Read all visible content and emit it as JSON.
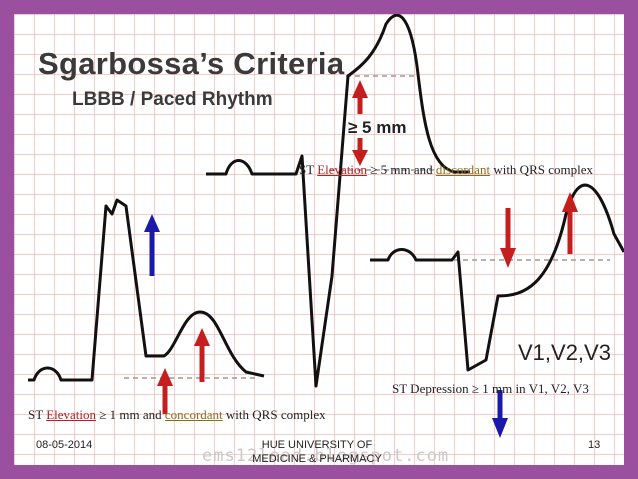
{
  "slide": {
    "title": "Sgarbossa’s Criteria",
    "subtitle": "LBBB / Paced Rhythm",
    "ge5_label": "≥ 5 mm",
    "leads_label": "V1,V2,V3",
    "watermark": "ems12lead.blogspot.com"
  },
  "captions": {
    "top": {
      "prefix": "ST ",
      "elevation": "Elevation",
      "middle": " ≥ 5 mm and ",
      "discordant": "discordant",
      "suffix": " with QRS complex"
    },
    "right": {
      "text": "ST Depression ≥ 1 mm in V1, V2, V3"
    },
    "bottom": {
      "prefix": "ST ",
      "elevation": "Elevation",
      "middle": " ≥ 1 mm and ",
      "concordant": "concordant",
      "suffix": " with QRS complex"
    }
  },
  "footer": {
    "date": "08-05-2014",
    "institution": "HUE UNIVERSITY OF MEDICINE & PHARMACY",
    "page": "13"
  },
  "colors": {
    "border": "#9b4f9f",
    "grid": "#f2aaa8",
    "arrow_red": "#c41e1e",
    "arrow_blue": "#1a1aaa",
    "trace": "#111111"
  }
}
